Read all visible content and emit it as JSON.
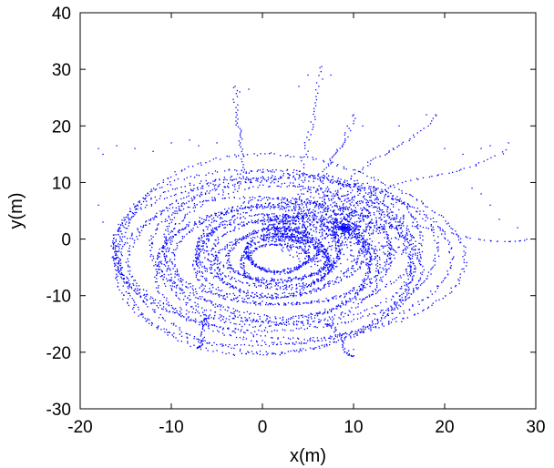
{
  "chart_data": {
    "type": "scatter",
    "title": "",
    "xlabel": "x(m)",
    "ylabel": "y(m)",
    "xlim": [
      -20,
      30
    ],
    "ylim": [
      -30,
      40
    ],
    "xticks": [
      -20,
      -10,
      0,
      10,
      20,
      30
    ],
    "yticks": [
      -30,
      -20,
      -10,
      0,
      10,
      20,
      30,
      40
    ],
    "grid": false,
    "series": [
      {
        "color": "#0000ff",
        "marker": "dot",
        "description_points": "dense spiral trajectory",
        "points_generated": true,
        "x": [],
        "y": []
      }
    ],
    "sparse_points": [
      [
        -18,
        16
      ],
      [
        -17.5,
        15
      ],
      [
        -16,
        16.5
      ],
      [
        -14,
        16
      ],
      [
        -12,
        15.5
      ],
      [
        -10,
        17
      ],
      [
        -8,
        17.5
      ],
      [
        -7,
        16.5
      ],
      [
        -5,
        17
      ],
      [
        -3,
        27
      ],
      [
        -2.5,
        26
      ],
      [
        -1.5,
        26.5
      ],
      [
        4,
        27
      ],
      [
        5,
        29
      ],
      [
        6.5,
        30.5
      ],
      [
        7.5,
        29
      ],
      [
        10,
        22
      ],
      [
        11,
        20
      ],
      [
        15,
        20
      ],
      [
        18,
        22
      ],
      [
        19,
        22
      ],
      [
        20,
        16
      ],
      [
        22,
        15
      ],
      [
        24,
        16
      ],
      [
        25,
        16.5
      ],
      [
        27,
        17
      ],
      [
        23,
        9
      ],
      [
        24,
        8
      ],
      [
        25,
        6
      ],
      [
        26,
        3.5
      ],
      [
        28,
        2
      ],
      [
        29,
        0
      ],
      [
        -18,
        6
      ],
      [
        -17.5,
        3
      ],
      [
        -7,
        -19
      ],
      [
        -6.5,
        -18
      ],
      [
        9,
        -20
      ],
      [
        9.5,
        -20.5
      ],
      [
        10,
        -19.5
      ],
      [
        18,
        -7
      ],
      [
        17,
        -8
      ]
    ]
  },
  "axes": {
    "x_tick_labels": [
      "-20",
      "-10",
      "0",
      "10",
      "20",
      "30"
    ],
    "y_tick_labels": [
      "-30",
      "-20",
      "-10",
      "0",
      "10",
      "20",
      "30",
      "40"
    ]
  }
}
